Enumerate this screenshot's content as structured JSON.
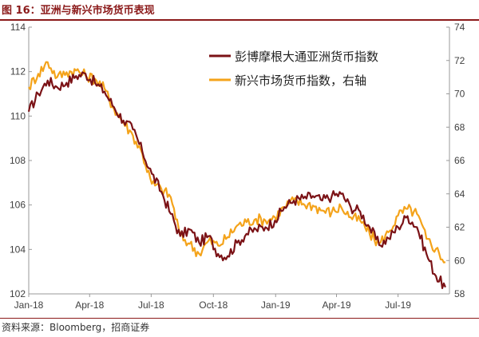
{
  "figure_title": "图 16：亚洲与新兴市场货币表现",
  "source_text": "资料来源：Bloomberg，招商证券",
  "chart_data": {
    "type": "line",
    "title": "",
    "xlabel": "",
    "ylabel": "",
    "y2label": "",
    "x_ticks": [
      "Jan-18",
      "Apr-18",
      "Jul-18",
      "Oct-18",
      "Jan-19",
      "Apr-19",
      "Jul-19"
    ],
    "ylim": [
      102,
      114
    ],
    "y_ticks": [
      102,
      104,
      106,
      108,
      110,
      112,
      114
    ],
    "y2lim": [
      58,
      74
    ],
    "y2_ticks": [
      58,
      60,
      62,
      64,
      66,
      68,
      70,
      72,
      74
    ],
    "grid": false,
    "legend_position": "top-right",
    "series": [
      {
        "name": "彭博摩根大通亚洲货币指数",
        "axis": "left",
        "color": "#7b1216",
        "points": [
          [
            "2018-01-01",
            110.2
          ],
          [
            "2018-01-15",
            111.0
          ],
          [
            "2018-01-29",
            111.6
          ],
          [
            "2018-02-12",
            111.3
          ],
          [
            "2018-02-26",
            111.5
          ],
          [
            "2018-03-12",
            111.8
          ],
          [
            "2018-03-26",
            111.9
          ],
          [
            "2018-04-09",
            111.5
          ],
          [
            "2018-04-23",
            111.1
          ],
          [
            "2018-05-07",
            110.4
          ],
          [
            "2018-05-21",
            109.8
          ],
          [
            "2018-06-04",
            109.4
          ],
          [
            "2018-06-18",
            108.4
          ],
          [
            "2018-07-02",
            107.4
          ],
          [
            "2018-07-16",
            106.6
          ],
          [
            "2018-07-30",
            105.6
          ],
          [
            "2018-08-13",
            104.6
          ],
          [
            "2018-08-27",
            104.9
          ],
          [
            "2018-09-10",
            104.3
          ],
          [
            "2018-09-24",
            104.6
          ],
          [
            "2018-10-08",
            103.8
          ],
          [
            "2018-10-22",
            103.7
          ],
          [
            "2018-11-05",
            104.3
          ],
          [
            "2018-11-19",
            104.7
          ],
          [
            "2018-12-03",
            104.9
          ],
          [
            "2018-12-17",
            105.0
          ],
          [
            "2018-12-31",
            105.3
          ],
          [
            "2019-01-14",
            105.9
          ],
          [
            "2019-01-28",
            106.2
          ],
          [
            "2019-02-11",
            106.3
          ],
          [
            "2019-02-25",
            106.4
          ],
          [
            "2019-03-11",
            106.2
          ],
          [
            "2019-03-25",
            106.4
          ],
          [
            "2019-04-08",
            106.5
          ],
          [
            "2019-04-22",
            105.9
          ],
          [
            "2019-05-06",
            105.7
          ],
          [
            "2019-05-20",
            105.0
          ],
          [
            "2019-06-03",
            104.2
          ],
          [
            "2019-06-17",
            104.5
          ],
          [
            "2019-07-01",
            105.0
          ],
          [
            "2019-07-15",
            105.5
          ],
          [
            "2019-07-29",
            105.0
          ],
          [
            "2019-08-12",
            103.8
          ],
          [
            "2019-08-26",
            102.8
          ],
          [
            "2019-09-09",
            102.3
          ]
        ]
      },
      {
        "name": "新兴市场货币指数，右轴",
        "axis": "right",
        "color": "#f4a31a",
        "points": [
          [
            "2018-01-01",
            70.4
          ],
          [
            "2018-01-15",
            71.2
          ],
          [
            "2018-01-29",
            71.9
          ],
          [
            "2018-02-12",
            71.0
          ],
          [
            "2018-02-26",
            71.3
          ],
          [
            "2018-03-12",
            71.4
          ],
          [
            "2018-03-26",
            71.1
          ],
          [
            "2018-04-09",
            70.9
          ],
          [
            "2018-04-23",
            70.3
          ],
          [
            "2018-05-07",
            69.1
          ],
          [
            "2018-05-21",
            68.3
          ],
          [
            "2018-06-04",
            67.5
          ],
          [
            "2018-06-18",
            66.4
          ],
          [
            "2018-07-02",
            64.6
          ],
          [
            "2018-07-16",
            64.3
          ],
          [
            "2018-07-30",
            63.8
          ],
          [
            "2018-08-13",
            61.5
          ],
          [
            "2018-08-27",
            61.0
          ],
          [
            "2018-09-10",
            60.4
          ],
          [
            "2018-09-24",
            61.2
          ],
          [
            "2018-10-08",
            60.9
          ],
          [
            "2018-10-22",
            61.4
          ],
          [
            "2018-11-05",
            62.1
          ],
          [
            "2018-11-19",
            62.3
          ],
          [
            "2018-12-03",
            62.5
          ],
          [
            "2018-12-17",
            62.4
          ],
          [
            "2018-12-31",
            62.6
          ],
          [
            "2019-01-14",
            63.2
          ],
          [
            "2019-01-28",
            63.6
          ],
          [
            "2019-02-11",
            63.4
          ],
          [
            "2019-02-25",
            63.3
          ],
          [
            "2019-03-11",
            63.0
          ],
          [
            "2019-03-25",
            62.9
          ],
          [
            "2019-04-08",
            63.2
          ],
          [
            "2019-04-22",
            62.6
          ],
          [
            "2019-05-06",
            62.4
          ],
          [
            "2019-05-20",
            61.6
          ],
          [
            "2019-06-03",
            61.0
          ],
          [
            "2019-06-17",
            61.7
          ],
          [
            "2019-07-01",
            62.7
          ],
          [
            "2019-07-15",
            63.1
          ],
          [
            "2019-07-29",
            62.8
          ],
          [
            "2019-08-12",
            61.3
          ],
          [
            "2019-08-26",
            60.7
          ],
          [
            "2019-09-09",
            59.9
          ]
        ]
      }
    ]
  }
}
